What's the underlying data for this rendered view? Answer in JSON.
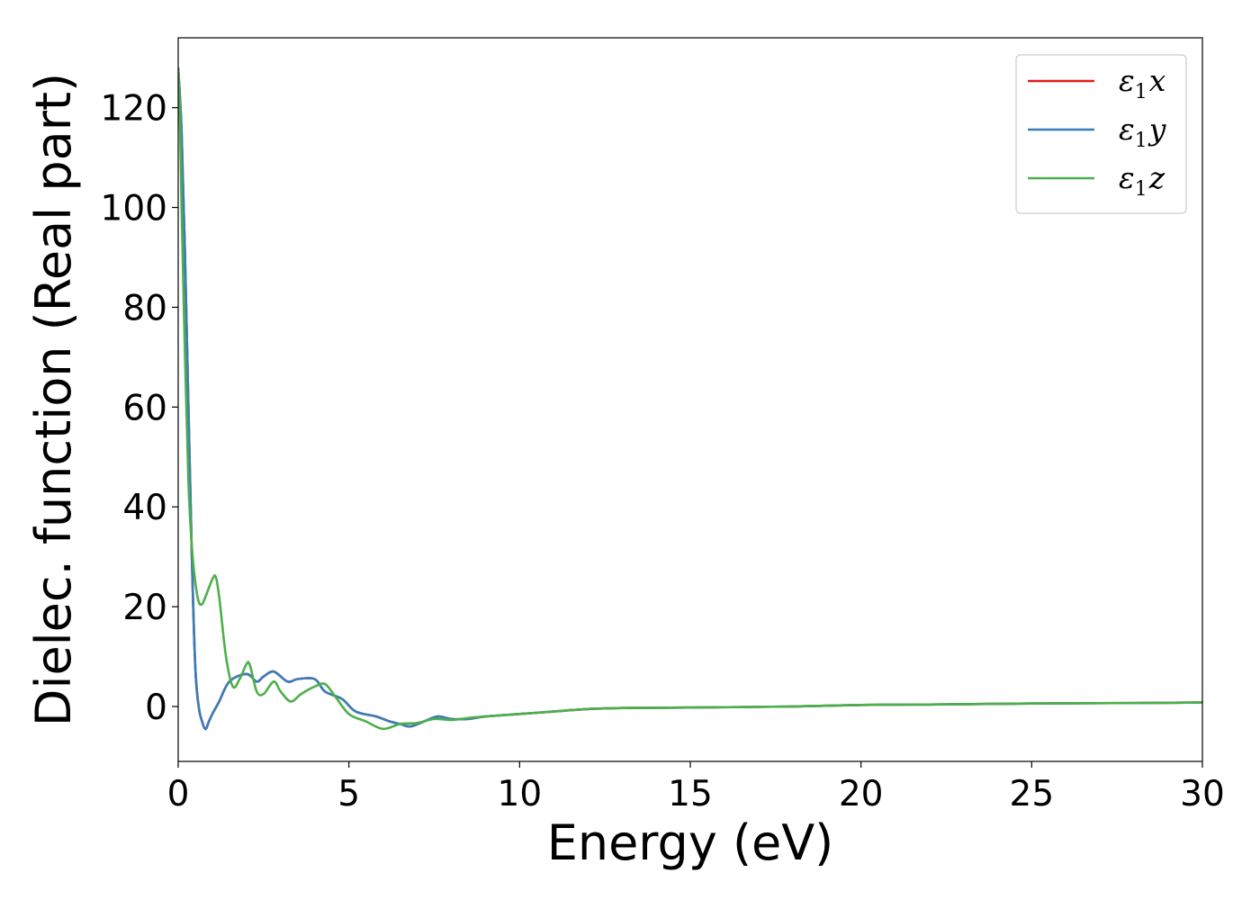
{
  "chart_data": {
    "type": "line",
    "xlabel": "Energy (eV)",
    "ylabel": "Dielec. function (Real part)",
    "xlim": [
      0,
      30
    ],
    "ylim": [
      -11,
      134
    ],
    "xticks": [
      0,
      5,
      10,
      15,
      20,
      25,
      30
    ],
    "yticks": [
      0,
      20,
      40,
      60,
      80,
      100,
      120
    ],
    "grid": false,
    "legend_position": "top-right",
    "series": [
      {
        "name": "ε₁x",
        "legend_main": "ε",
        "legend_sub": "1",
        "legend_var": "x",
        "color": "#e41a1c",
        "x": [
          0,
          0.1,
          0.2,
          0.3,
          0.4,
          0.5,
          0.6,
          0.7,
          0.8,
          0.9,
          1.0,
          1.2,
          1.5,
          2.0,
          2.3,
          2.5,
          2.8,
          3.2,
          3.5,
          4.0,
          4.3,
          4.8,
          5.2,
          5.8,
          6.2,
          6.5,
          6.8,
          7.2,
          7.6,
          8.0,
          8.5,
          9.0,
          10.0,
          11.0,
          12.0,
          13.0,
          15.0,
          18.0,
          20.0,
          22.0,
          25.0,
          28.0,
          30.0
        ],
        "y": [
          128,
          115,
          90,
          60,
          30,
          8,
          0,
          -3,
          -4.5,
          -3,
          -1.5,
          1,
          5,
          6.5,
          5,
          6,
          7,
          5,
          5.5,
          5.5,
          3,
          1.5,
          -1,
          -2,
          -3,
          -3.5,
          -4,
          -3,
          -2,
          -2.5,
          -2.5,
          -2,
          -1.5,
          -1,
          -0.5,
          -0.3,
          -0.2,
          0,
          0.3,
          0.4,
          0.6,
          0.7,
          0.8
        ]
      },
      {
        "name": "ε₁y",
        "legend_main": "ε",
        "legend_sub": "1",
        "legend_var": "y",
        "color": "#377eb8",
        "x": [
          0,
          0.1,
          0.2,
          0.3,
          0.4,
          0.5,
          0.6,
          0.7,
          0.8,
          0.9,
          1.0,
          1.2,
          1.5,
          2.0,
          2.3,
          2.5,
          2.8,
          3.2,
          3.5,
          4.0,
          4.3,
          4.8,
          5.2,
          5.8,
          6.2,
          6.5,
          6.8,
          7.2,
          7.6,
          8.0,
          8.5,
          9.0,
          10.0,
          11.0,
          12.0,
          13.0,
          15.0,
          18.0,
          20.0,
          22.0,
          25.0,
          28.0,
          30.0
        ],
        "y": [
          128,
          115,
          90,
          60,
          30,
          8,
          0,
          -3,
          -4.5,
          -3,
          -1.5,
          1,
          5,
          6.5,
          5,
          6,
          7,
          5,
          5.5,
          5.5,
          3,
          1.5,
          -1,
          -2,
          -3,
          -3.5,
          -4,
          -3,
          -2,
          -2.5,
          -2.5,
          -2,
          -1.5,
          -1,
          -0.5,
          -0.3,
          -0.2,
          0,
          0.3,
          0.4,
          0.6,
          0.7,
          0.8
        ]
      },
      {
        "name": "ε₁z",
        "legend_main": "ε",
        "legend_sub": "1",
        "legend_var": "z",
        "color": "#4daf4a",
        "x": [
          0,
          0.05,
          0.1,
          0.2,
          0.3,
          0.4,
          0.5,
          0.6,
          0.7,
          0.8,
          1.0,
          1.1,
          1.2,
          1.4,
          1.6,
          1.8,
          2.0,
          2.1,
          2.3,
          2.5,
          2.8,
          3.0,
          3.3,
          3.6,
          4.0,
          4.3,
          4.6,
          5.0,
          5.5,
          6.0,
          6.5,
          7.0,
          7.5,
          8.0,
          8.5,
          9.0,
          10.0,
          11.0,
          12.0,
          13.0,
          15.0,
          18.0,
          20.0,
          22.0,
          25.0,
          28.0,
          30.0
        ],
        "y": [
          128,
          118,
          100,
          70,
          45,
          32,
          25,
          21,
          20.5,
          22,
          25.5,
          26,
          22,
          10,
          4,
          5.5,
          8.5,
          8.3,
          3,
          2.5,
          5,
          3,
          1,
          2.5,
          4,
          4.5,
          2,
          -1.5,
          -3,
          -4.5,
          -3.5,
          -3.3,
          -2.5,
          -2.7,
          -2.3,
          -2,
          -1.5,
          -1,
          -0.5,
          -0.3,
          -0.2,
          0,
          0.3,
          0.4,
          0.6,
          0.7,
          0.8
        ]
      }
    ]
  }
}
